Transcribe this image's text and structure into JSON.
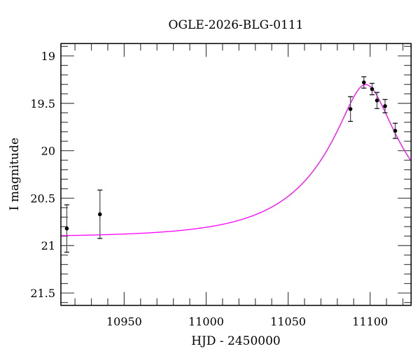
{
  "chart_data": {
    "type": "scatter",
    "title": "OGLE-2026-BLG-0111",
    "xlabel": "HJD - 2450000",
    "ylabel": "I magnitude",
    "xlim": [
      10911.4,
      11125
    ],
    "ylim": [
      21.63,
      18.87
    ],
    "y_inverted": true,
    "grid": false,
    "x_major_ticks": [
      10950,
      11000,
      11050,
      11100
    ],
    "x_tick_labels": [
      "10950",
      "11000",
      "11050",
      "11100"
    ],
    "x_minor_step": 10,
    "y_major_ticks": [
      19,
      19.5,
      20,
      20.5,
      21,
      21.5
    ],
    "y_tick_labels": [
      "19",
      "19.5",
      "20",
      "20.5",
      "21",
      "21.5"
    ],
    "y_minor_step": 0.1,
    "points": [
      {
        "x": 10915.0,
        "y": 20.82,
        "err": 0.25
      },
      {
        "x": 10935.2,
        "y": 20.67,
        "err": 0.255
      },
      {
        "x": 11088.0,
        "y": 19.56,
        "err": 0.13
      },
      {
        "x": 11096.2,
        "y": 19.28,
        "err": 0.06
      },
      {
        "x": 11101.2,
        "y": 19.35,
        "err": 0.06
      },
      {
        "x": 11104.2,
        "y": 19.47,
        "err": 0.085
      },
      {
        "x": 11109.1,
        "y": 19.53,
        "err": 0.07
      },
      {
        "x": 11115.3,
        "y": 19.79,
        "err": 0.08
      }
    ],
    "model": {
      "type": "point-lens",
      "t0": 11097.3,
      "tE": 58.6,
      "u0": 0.232,
      "baseline_mag": 20.91,
      "color": "#ff00ff"
    },
    "point_color": "#000000",
    "errorbar_color": "#555555"
  }
}
